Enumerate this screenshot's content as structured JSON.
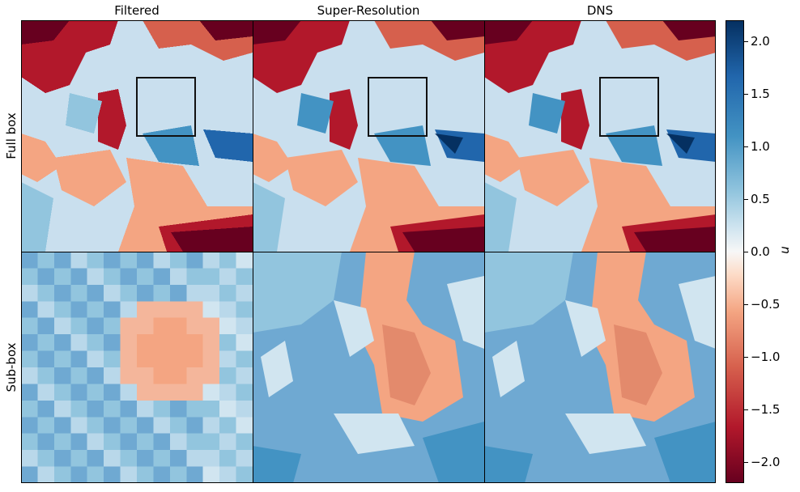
{
  "columns": [
    "Filtered",
    "Super-Resolution",
    "DNS"
  ],
  "rows": [
    "Full box",
    "Sub-box"
  ],
  "colorbar": {
    "label": "u",
    "min": -2.2,
    "max": 2.2,
    "ticks": [
      "2.0",
      "1.5",
      "1.0",
      "0.5",
      "0.0",
      "−0.5",
      "−1.0",
      "−1.5",
      "−2.0"
    ],
    "tick_values": [
      2.0,
      1.5,
      1.0,
      0.5,
      0.0,
      -0.5,
      -1.0,
      -1.5,
      -2.0
    ],
    "colormap": "RdBu"
  },
  "colors": {
    "deep_red": "#67001f",
    "red": "#b2182b",
    "salmon": "#f4a582",
    "white": "#f7f7f7",
    "light_blue": "#92c5de",
    "blue": "#2166ac",
    "deep_blue": "#053061"
  }
}
